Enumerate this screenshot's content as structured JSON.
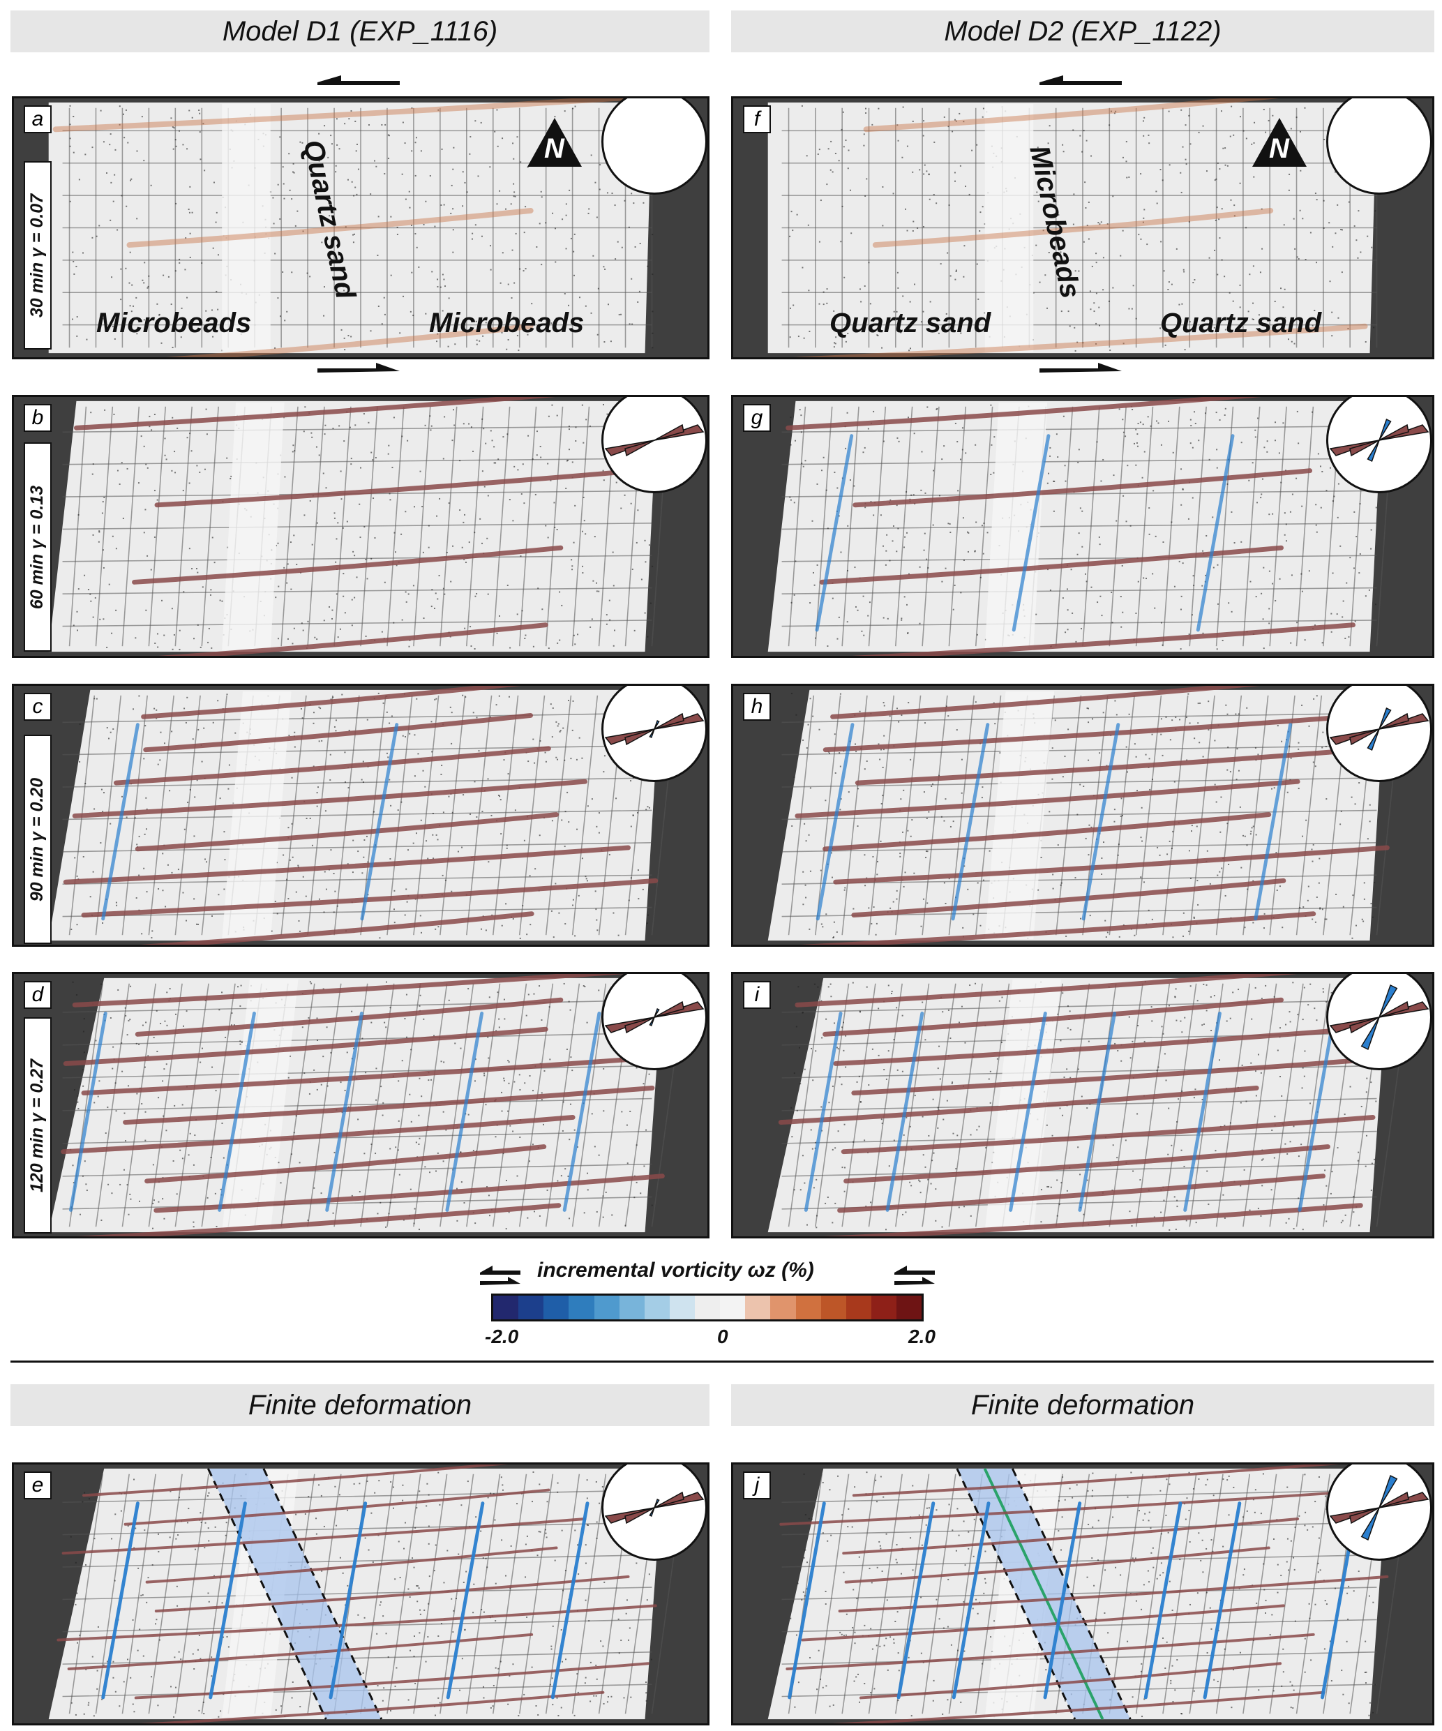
{
  "headers": {
    "left": "Model D1 (EXP_1116)",
    "right": "Model D2 (EXP_1122)",
    "finite_left": "Finite deformation",
    "finite_right": "Finite deformation"
  },
  "panels": [
    {
      "letter": "a",
      "time": "30 min γ = 0.07",
      "labels": [
        "Microbeads",
        "Quartz sand",
        "Microbeads"
      ]
    },
    {
      "letter": "b",
      "time": "60 min γ = 0.13"
    },
    {
      "letter": "c",
      "time": "90 min γ = 0.20"
    },
    {
      "letter": "d",
      "time": "120 min γ = 0.27"
    },
    {
      "letter": "e"
    },
    {
      "letter": "f",
      "labels": [
        "Quartz sand",
        "Microbeads",
        "Quartz sand"
      ]
    },
    {
      "letter": "g"
    },
    {
      "letter": "h"
    },
    {
      "letter": "i"
    },
    {
      "letter": "j"
    }
  ],
  "north_label": "N",
  "colorbar": {
    "title": "incremental vorticity ωz (%)",
    "min_label": "-2.0",
    "mid_label": "0",
    "max_label": "2.0",
    "colors": [
      "#22286e",
      "#1c3f8c",
      "#1f5ea8",
      "#2f7dbd",
      "#4f9ace",
      "#78b4da",
      "#a4cde6",
      "#cfe3ef",
      "#eeeeee",
      "#f3f3f3",
      "#ecc3ad",
      "#e0946c",
      "#d0713f",
      "#bd5628",
      "#a8391c",
      "#8e2018",
      "#6e1414"
    ]
  },
  "colors": {
    "dextral_red": "#8a4a4a",
    "sinistral_blue": "#2a7fcf",
    "shear_zone_fill": "#a8c4ee",
    "green_line": "#2aa36a"
  }
}
